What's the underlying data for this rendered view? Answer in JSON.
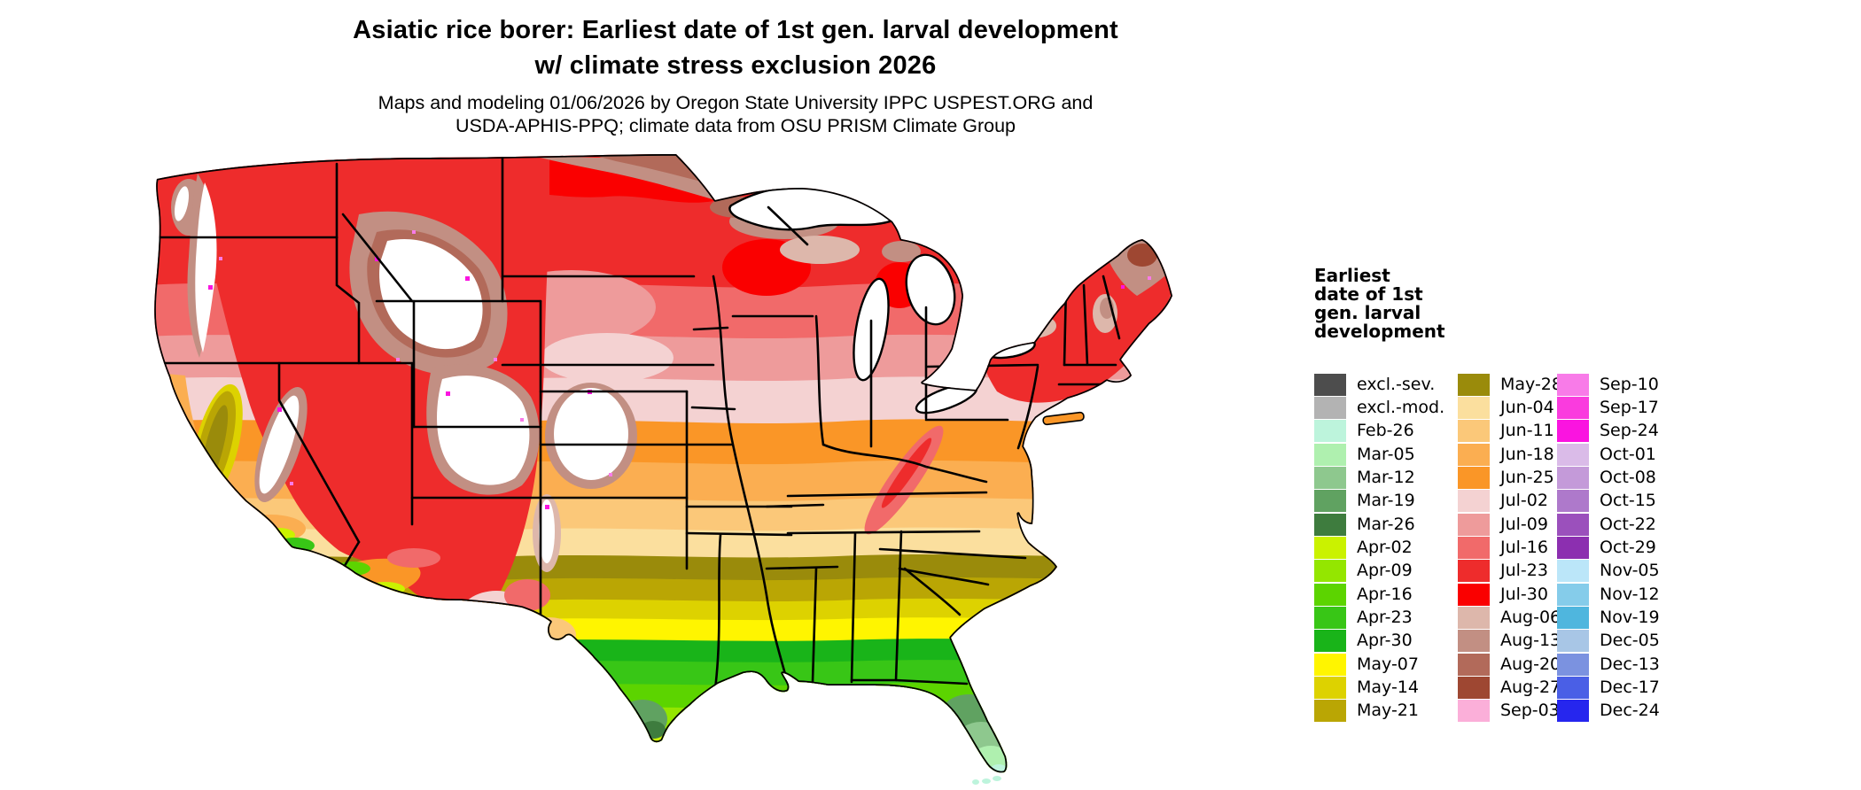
{
  "header": {
    "title_line1": "Asiatic rice borer: Earliest date of 1st gen. larval development",
    "title_line2": "w/ climate stress exclusion 2026",
    "subtitle_line1": "Maps and modeling 01/06/2026 by Oregon State University IPPC USPEST.ORG and",
    "subtitle_line2": "USDA-APHIS-PPQ; climate data from OSU PRISM Climate Group"
  },
  "legend": {
    "title_lines": [
      "Earliest",
      "date of 1st",
      "gen. larval",
      "development"
    ],
    "columns": [
      [
        "excl.-sev.",
        "excl.-mod.",
        "Feb-26",
        "Mar-05",
        "Mar-12",
        "Mar-19",
        "Mar-26",
        "Apr-02",
        "Apr-09",
        "Apr-16",
        "Apr-23",
        "Apr-30",
        "May-07",
        "May-14",
        "May-21"
      ],
      [
        "May-28",
        "Jun-04",
        "Jun-11",
        "Jun-18",
        "Jun-25",
        "Jul-02",
        "Jul-09",
        "Jul-16",
        "Jul-23",
        "Jul-30",
        "Aug-06",
        "Aug-13",
        "Aug-20",
        "Aug-27",
        "Sep-03"
      ],
      [
        "Sep-10",
        "Sep-17",
        "Sep-24",
        "Oct-01",
        "Oct-08",
        "Oct-15",
        "Oct-22",
        "Oct-29",
        "Nov-05",
        "Nov-12",
        "Nov-19",
        "Dec-05",
        "Dec-13",
        "Dec-17",
        "Dec-24"
      ]
    ]
  },
  "palette": {
    "excl.-sev.": "#4D4D4D",
    "excl.-mod.": "#B3B3B3",
    "Feb-26": "#BDF4DC",
    "Mar-05": "#AFF0AF",
    "Mar-12": "#8EC88E",
    "Mar-19": "#60A261",
    "Mar-26": "#3E7C3E",
    "Apr-02": "#CAF200",
    "Apr-09": "#94E600",
    "Apr-16": "#5CD400",
    "Apr-23": "#38C616",
    "Apr-30": "#19B419",
    "May-07": "#FFF500",
    "May-14": "#DDD200",
    "May-21": "#BAA604",
    "May-28": "#9A8B0B",
    "Jun-04": "#FBDF9E",
    "Jun-11": "#FBC879",
    "Jun-18": "#FBAE51",
    "Jun-25": "#FA9627",
    "Jul-02": "#F4D2D2",
    "Jul-09": "#EE9B9B",
    "Jul-16": "#F16A6A",
    "Jul-23": "#EE2C2C",
    "Jul-30": "#FA0000",
    "Aug-06": "#DDB7AB",
    "Aug-13": "#C28F83",
    "Aug-20": "#B26A5A",
    "Aug-27": "#9E4732",
    "Sep-03": "#FBAFD9",
    "Sep-10": "#F87BE8",
    "Sep-17": "#FA3BDE",
    "Sep-24": "#FA14E0",
    "Oct-01": "#DABBE8",
    "Oct-08": "#C49AD9",
    "Oct-15": "#AE79CB",
    "Oct-22": "#9B50BC",
    "Oct-29": "#8C2FB0",
    "Nov-05": "#BBE6F9",
    "Nov-12": "#85CCEA",
    "Nov-19": "#4FB6DE",
    "Dec-05": "#A8C6E6",
    "Dec-13": "#7B92E0",
    "Dec-17": "#4A5FE6",
    "Dec-24": "#2626EE"
  }
}
